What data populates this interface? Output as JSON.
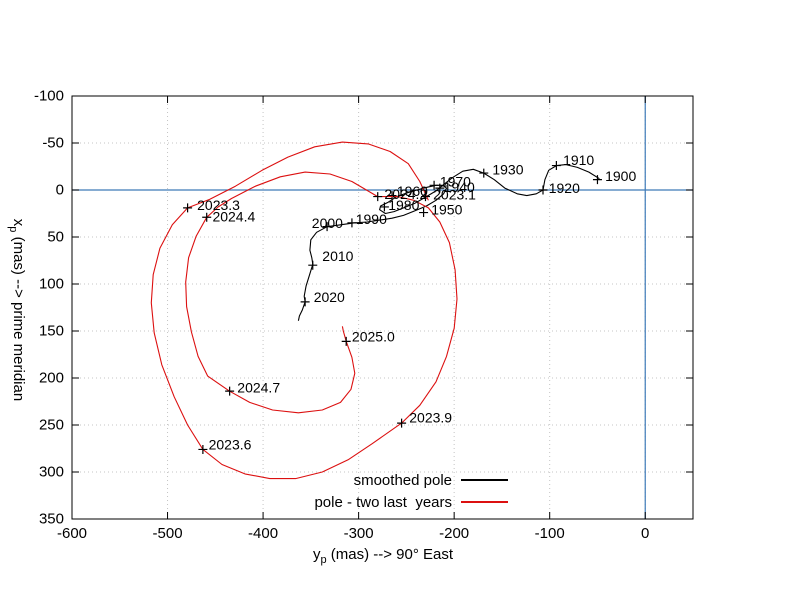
{
  "colors": {
    "background": "#ffffff",
    "axis": "#000000",
    "grid": "#c4c4c4",
    "zero_line": "#3d7ab8",
    "smoothed": "#000000",
    "recent": "#dc1010",
    "decade_labels": "#9400d3",
    "epoch_labels": "#00a07e"
  },
  "axes": {
    "x": {
      "var": "y",
      "sub": "p",
      "rest": " (mas) --> 90° East",
      "min": -600,
      "max": 50,
      "ticks": [
        -600,
        -500,
        -400,
        -300,
        -200,
        -100,
        0
      ]
    },
    "y": {
      "var": "x",
      "sub": "p",
      "rest": " (mas) --> prime meridian",
      "min": -100,
      "max": 350,
      "ticks": [
        -100,
        -50,
        0,
        50,
        100,
        150,
        200,
        250,
        300,
        350
      ]
    }
  },
  "legend": [
    {
      "label": "smoothed pole",
      "series": "smoothed"
    },
    {
      "label": "pole - two last  years",
      "series": "recent"
    }
  ],
  "chart_data": {
    "type": "line",
    "xlabel": "y_p (mas) --> 90° East",
    "ylabel": "x_p (mas) --> prime meridian",
    "x_range": [
      -600,
      50
    ],
    "y_range": [
      -100,
      350
    ],
    "y_inverted": true,
    "grid": true,
    "zero_lines": true,
    "units": "mas",
    "series": [
      {
        "name": "smoothed pole",
        "color_key": "smoothed",
        "points": [
          [
            -48,
            -12
          ],
          [
            -59,
            -19
          ],
          [
            -71,
            -24
          ],
          [
            -83,
            -27
          ],
          [
            -93,
            -26
          ],
          [
            -101,
            -21
          ],
          [
            -105,
            -11
          ],
          [
            -107,
            0
          ],
          [
            -114,
            4
          ],
          [
            -124,
            6
          ],
          [
            -134,
            4
          ],
          [
            -147,
            -2
          ],
          [
            -158,
            -11
          ],
          [
            -169,
            -18
          ],
          [
            -180,
            -22
          ],
          [
            -191,
            -20
          ],
          [
            -202,
            -13
          ],
          [
            -212,
            -5
          ],
          [
            -219,
            1
          ],
          [
            -229,
            7
          ],
          [
            -241,
            14
          ],
          [
            -253,
            19
          ],
          [
            -263,
            23
          ],
          [
            -272,
            25
          ],
          [
            -278,
            21
          ],
          [
            -277,
            17
          ],
          [
            -269,
            13
          ],
          [
            -260,
            7
          ],
          [
            -249,
            3
          ],
          [
            -239,
            0
          ],
          [
            -228,
            -3
          ],
          [
            -219,
            -5
          ],
          [
            -212,
            -5
          ],
          [
            -208,
            -2
          ],
          [
            -211,
            4
          ],
          [
            -219,
            11
          ],
          [
            -229,
            17
          ],
          [
            -241,
            22
          ],
          [
            -253,
            27
          ],
          [
            -265,
            30
          ],
          [
            -278,
            32
          ],
          [
            -291,
            34
          ],
          [
            -305,
            35
          ],
          [
            -319,
            37
          ],
          [
            -333,
            39
          ],
          [
            -344,
            45
          ],
          [
            -350,
            53
          ],
          [
            -351,
            64
          ],
          [
            -349,
            72
          ],
          [
            -348,
            79
          ],
          [
            -351,
            89
          ],
          [
            -355,
            102
          ],
          [
            -357,
            113
          ],
          [
            -356,
            119
          ],
          [
            -359,
            128
          ],
          [
            -362,
            134
          ],
          [
            -363,
            139
          ]
        ],
        "markers": [
          {
            "label": "1900",
            "x": -50,
            "y": -11
          },
          {
            "label": "1910",
            "x": -93,
            "y": -26
          },
          {
            "label": "1920",
            "x": -107,
            "y": 0
          },
          {
            "label": "1930",
            "x": -169,
            "y": -18
          },
          {
            "label": "1940",
            "x": -215,
            "y": -2
          },
          {
            "label": "1950",
            "x": -232,
            "y": 24
          },
          {
            "label": "1960",
            "x": -265,
            "y": 6
          },
          {
            "label": "1970",
            "x": -221,
            "y": -5
          },
          {
            "label": "1980",
            "x": -273,
            "y": 18
          },
          {
            "label": "1990",
            "x": -307,
            "y": 35
          },
          {
            "label": "2000",
            "x": -333,
            "y": 39
          },
          {
            "label": "2010",
            "x": -348,
            "y": 80
          },
          {
            "label": "2020",
            "x": -356,
            "y": 119
          }
        ]
      },
      {
        "name": "pole - two last  years",
        "color_key": "recent",
        "points": [
          [
            -227,
            11
          ],
          [
            -236,
            -9
          ],
          [
            -248,
            -28
          ],
          [
            -267,
            -41
          ],
          [
            -290,
            -49
          ],
          [
            -317,
            -51
          ],
          [
            -346,
            -46
          ],
          [
            -374,
            -35
          ],
          [
            -401,
            -21
          ],
          [
            -429,
            -4
          ],
          [
            -456,
            10
          ],
          [
            -479,
            19
          ],
          [
            -495,
            37
          ],
          [
            -508,
            62
          ],
          [
            -515,
            90
          ],
          [
            -517,
            120
          ],
          [
            -514,
            152
          ],
          [
            -506,
            186
          ],
          [
            -493,
            220
          ],
          [
            -479,
            250
          ],
          [
            -463,
            276
          ],
          [
            -443,
            292
          ],
          [
            -419,
            302
          ],
          [
            -393,
            307
          ],
          [
            -366,
            307
          ],
          [
            -338,
            300
          ],
          [
            -311,
            287
          ],
          [
            -286,
            270
          ],
          [
            -255,
            248
          ],
          [
            -236,
            229
          ],
          [
            -219,
            204
          ],
          [
            -208,
            177
          ],
          [
            -200,
            147
          ],
          [
            -197,
            116
          ],
          [
            -199,
            85
          ],
          [
            -205,
            56
          ],
          [
            -215,
            34
          ],
          [
            -227,
            19
          ],
          [
            -242,
            11
          ],
          [
            -259,
            7
          ],
          [
            -280,
            7
          ],
          [
            -307,
            -9
          ],
          [
            -330,
            -17
          ],
          [
            -356,
            -19
          ],
          [
            -382,
            -14
          ],
          [
            -408,
            -4
          ],
          [
            -433,
            9
          ],
          [
            -447,
            18
          ],
          [
            -459,
            29
          ],
          [
            -470,
            49
          ],
          [
            -478,
            72
          ],
          [
            -481,
            98
          ],
          [
            -480,
            124
          ],
          [
            -475,
            151
          ],
          [
            -468,
            177
          ],
          [
            -458,
            198
          ],
          [
            -435,
            214
          ],
          [
            -414,
            226
          ],
          [
            -390,
            234
          ],
          [
            -363,
            237
          ],
          [
            -338,
            234
          ],
          [
            -319,
            226
          ],
          [
            -308,
            212
          ],
          [
            -304,
            195
          ],
          [
            -307,
            178
          ],
          [
            -313,
            161
          ],
          [
            -316,
            150
          ],
          [
            -317,
            145
          ]
        ],
        "markers": [
          {
            "label": "2023.1",
            "x": -230,
            "y": 7
          },
          {
            "label": "2023.3",
            "x": -479,
            "y": 19
          },
          {
            "label": "2023.6",
            "x": -463,
            "y": 276
          },
          {
            "label": "2023.9",
            "x": -255,
            "y": 248
          },
          {
            "label": "2024.2",
            "x": -280,
            "y": 7
          },
          {
            "label": "2024.4",
            "x": -459,
            "y": 29
          },
          {
            "label": "2024.7",
            "x": -435,
            "y": 214
          },
          {
            "label": "2025.0",
            "x": -313,
            "y": 161
          }
        ]
      }
    ],
    "point_labels": [
      {
        "text": "1900",
        "x": -42,
        "y": -15,
        "color_key": "decade_labels"
      },
      {
        "text": "1910",
        "x": -86,
        "y": -32,
        "color_key": "decade_labels"
      },
      {
        "text": "1920",
        "x": -101,
        "y": -2,
        "color_key": "decade_labels"
      },
      {
        "text": "1930",
        "x": -160,
        "y": -22,
        "color_key": "decade_labels"
      },
      {
        "text": "1970",
        "x": -215,
        "y": -9,
        "color_key": "decade_labels"
      },
      {
        "text": "1940",
        "x": -211,
        "y": -3,
        "color_key": "decade_labels"
      },
      {
        "text": "1960",
        "x": -260,
        "y": 1,
        "color_key": "decade_labels"
      },
      {
        "text": "1950",
        "x": -224,
        "y": 21,
        "color_key": "decade_labels"
      },
      {
        "text": "1980",
        "x": -269,
        "y": 16,
        "color_key": "decade_labels"
      },
      {
        "text": "1990",
        "x": -303,
        "y": 31,
        "color_key": "decade_labels"
      },
      {
        "text": "2000",
        "x": -349,
        "y": 35,
        "color_key": "decade_labels"
      },
      {
        "text": "2010",
        "x": -338,
        "y": 70,
        "color_key": "decade_labels"
      },
      {
        "text": "2020",
        "x": -347,
        "y": 114,
        "color_key": "decade_labels"
      },
      {
        "text": "2023.1",
        "x": -222,
        "y": 5,
        "color_key": "epoch_labels"
      },
      {
        "text": "2024.2",
        "x": -273,
        "y": 4,
        "color_key": "epoch_labels"
      },
      {
        "text": "2023.3",
        "x": -469,
        "y": 16,
        "color_key": "epoch_labels"
      },
      {
        "text": "2024.4",
        "x": -453,
        "y": 28,
        "color_key": "epoch_labels"
      },
      {
        "text": "2023.6",
        "x": -457,
        "y": 271,
        "color_key": "epoch_labels"
      },
      {
        "text": "2024.7",
        "x": -427,
        "y": 210,
        "color_key": "epoch_labels"
      },
      {
        "text": "2023.9",
        "x": -247,
        "y": 242,
        "color_key": "epoch_labels"
      },
      {
        "text": "2025.0",
        "x": -307,
        "y": 156,
        "color_key": "epoch_labels"
      }
    ]
  }
}
